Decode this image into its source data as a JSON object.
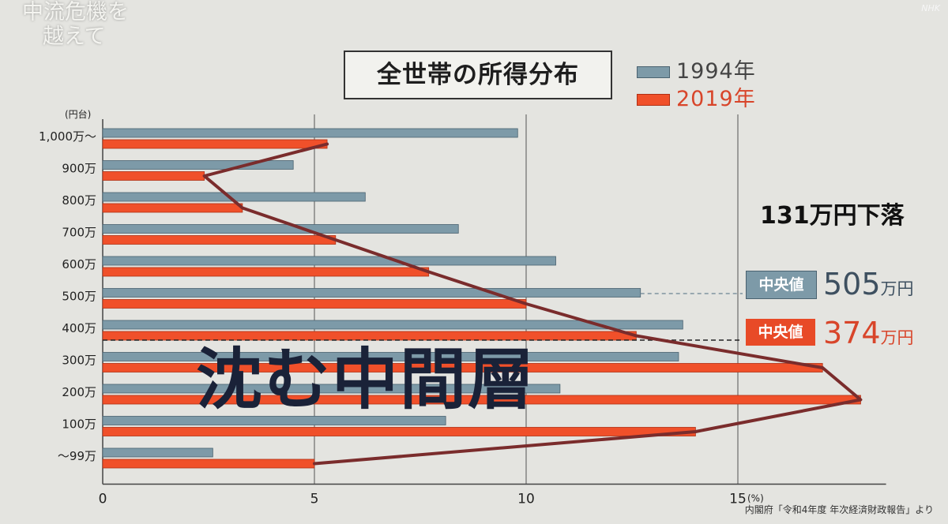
{
  "program": {
    "title_line1": "中流危機を",
    "title_line2": "越えて",
    "corner": "NHK"
  },
  "legend_title": "全世帯の所得分布",
  "annotations": {
    "drop": "131万円下落",
    "median_label": "中央値",
    "median_1994_value": "505",
    "median_2019_value": "374",
    "unit": "万円",
    "headline": "沈む中間層",
    "source": "内閣府「令和4年度 年次経済財政報告」より"
  },
  "chart_data": {
    "type": "bar",
    "orientation": "horizontal",
    "title": "全世帯の所得分布",
    "yunit": "(円台)",
    "xunit": "(%)",
    "categories": [
      "1,000万〜",
      "900万",
      "800万",
      "700万",
      "600万",
      "500万",
      "400万",
      "300万",
      "200万",
      "100万",
      "〜99万"
    ],
    "series": [
      {
        "name": "1994年",
        "color": "#7d9aa8",
        "values": [
          9.8,
          4.5,
          6.2,
          8.4,
          10.7,
          12.7,
          13.7,
          13.6,
          10.8,
          8.1,
          2.6
        ]
      },
      {
        "name": "2019年",
        "color": "#f0502a",
        "values": [
          5.3,
          2.4,
          3.3,
          5.5,
          7.7,
          10.0,
          12.6,
          17.0,
          17.9,
          14.0,
          5.0
        ]
      }
    ],
    "xticks": [
      0,
      5,
      10,
      15
    ],
    "xlim": [
      0,
      18.5
    ],
    "grid": "vertical",
    "legend": "top-right"
  }
}
